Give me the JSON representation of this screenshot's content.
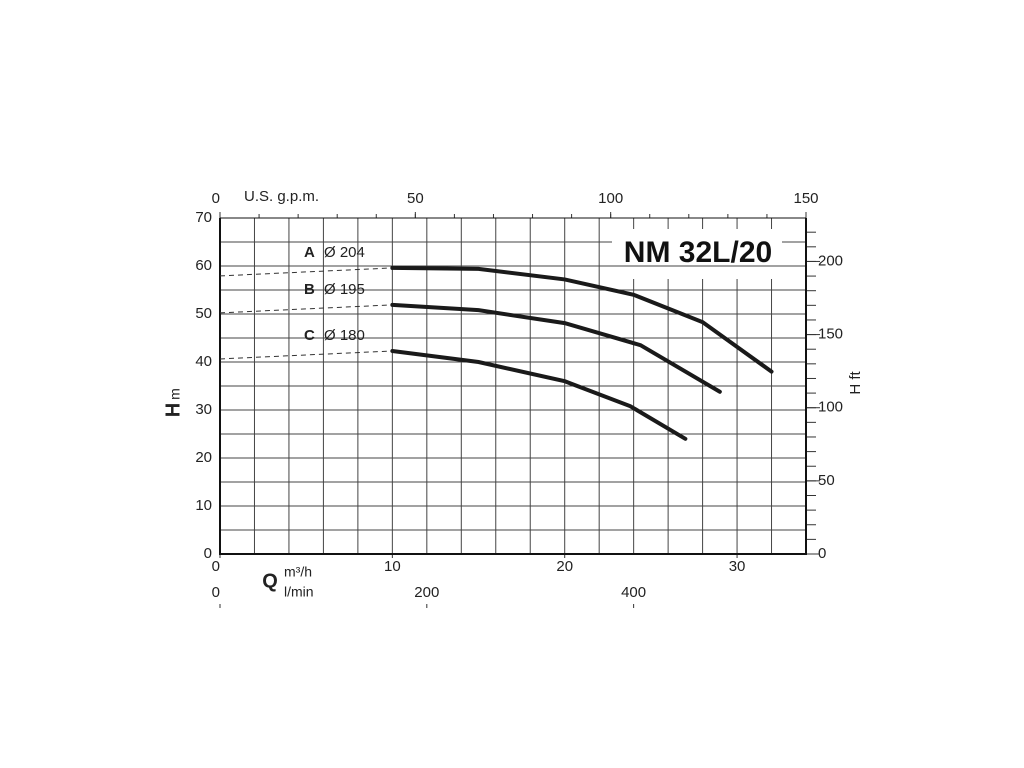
{
  "chart_data": {
    "type": "line",
    "title": "NM 32L/20",
    "x_label": "Q",
    "x_unit": "m³/h",
    "x2_unit": "l/min",
    "top_label": "U.S. g.p.m.",
    "y_label": "H",
    "y_unit": "m",
    "y2_label": "H ft",
    "xlim": [
      0,
      34
    ],
    "xticks": [
      0,
      10,
      20,
      30
    ],
    "top_lim": [
      0,
      150
    ],
    "top_ticks": [
      0,
      50,
      100,
      150
    ],
    "x2lim": [
      0,
      566.7
    ],
    "x2ticks": [
      0,
      200,
      400
    ],
    "ylim": [
      0,
      70
    ],
    "yticks": [
      0,
      10,
      20,
      30,
      40,
      50,
      60,
      70
    ],
    "y2lim": [
      0,
      229.7
    ],
    "y2ticks": [
      0,
      50,
      100,
      150,
      200
    ],
    "grid": true,
    "color": "#1a1a1a",
    "series": [
      {
        "name": "A",
        "label": "Ø 204",
        "x": [
          10,
          15,
          20,
          24,
          28,
          32
        ],
        "values": [
          59.6,
          59.4,
          57.2,
          54,
          48.3,
          38
        ]
      },
      {
        "name": "B",
        "label": "Ø 195",
        "x": [
          10,
          15,
          20,
          24.4,
          29
        ],
        "values": [
          51.9,
          50.8,
          48.1,
          43.5,
          33.8
        ]
      },
      {
        "name": "C",
        "label": "Ø 180",
        "x": [
          10,
          15,
          20,
          23.8,
          27
        ],
        "values": [
          42.3,
          40,
          36,
          30.8,
          24
        ]
      }
    ]
  }
}
